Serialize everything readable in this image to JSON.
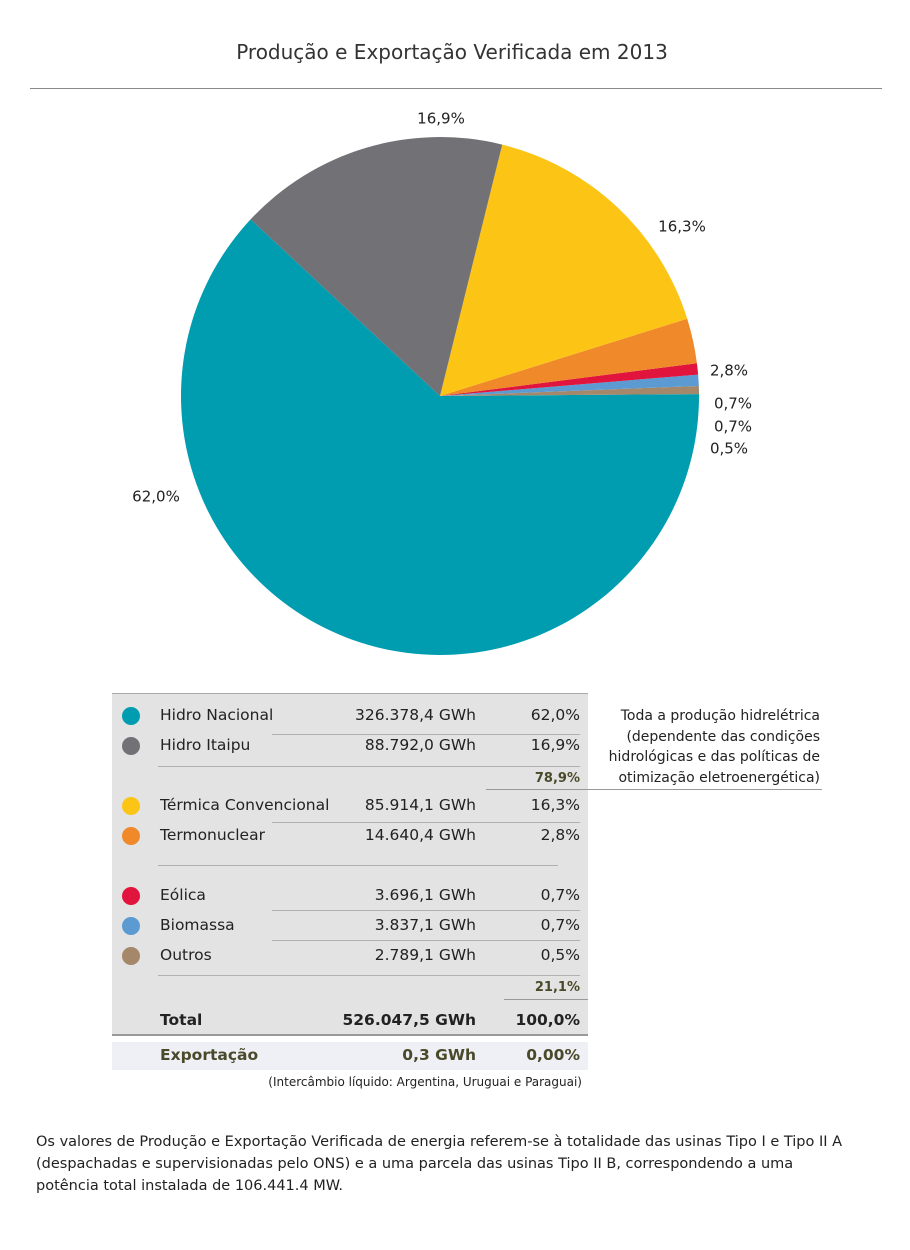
{
  "page": {
    "title": "Produção e Exportação Verificada em 2013"
  },
  "chart_data": {
    "type": "pie",
    "title": "Produção e Exportação Verificada em 2013",
    "slices": [
      {
        "name": "Hidro Nacional",
        "value": 62.0,
        "label": "62,0%",
        "color": "#009db1"
      },
      {
        "name": "Outros",
        "value": 0.5,
        "label": "0,5%",
        "color": "#a5876a"
      },
      {
        "name": "Biomassa",
        "value": 0.7,
        "label": "0,7%",
        "color": "#5b9bd1"
      },
      {
        "name": "Eólica",
        "value": 0.7,
        "label": "0,7%",
        "color": "#e0143c"
      },
      {
        "name": "Termonuclear",
        "value": 2.8,
        "label": "2,8%",
        "color": "#f0892a"
      },
      {
        "name": "Térmica Convencional",
        "value": 16.3,
        "label": "16,3%",
        "color": "#fcc516"
      },
      {
        "name": "Hidro Itaipu",
        "value": 16.9,
        "label": "16,9%",
        "color": "#727176"
      }
    ]
  },
  "table": {
    "rows": [
      {
        "name": "Hidro Nacional",
        "gwh": "326.378,4 GWh",
        "pct": "62,0%",
        "color": "#009db1"
      },
      {
        "name": "Hidro Itaipu",
        "gwh": "88.792,0 GWh",
        "pct": "16,9%",
        "color": "#727176"
      },
      {
        "name": "Térmica Convencional",
        "gwh": "85.914,1 GWh",
        "pct": "16,3%",
        "color": "#fcc516"
      },
      {
        "name": "Termonuclear",
        "gwh": "14.640,4 GWh",
        "pct": "2,8%",
        "color": "#f0892a"
      },
      {
        "name": "Eólica",
        "gwh": "3.696,1 GWh",
        "pct": "0,7%",
        "color": "#e0143c"
      },
      {
        "name": "Biomassa",
        "gwh": "3.837,1 GWh",
        "pct": "0,7%",
        "color": "#5b9bd1"
      },
      {
        "name": "Outros",
        "gwh": "2.789,1 GWh",
        "pct": "0,5%",
        "color": "#a5876a"
      }
    ],
    "subtotal_hydro": "78,9%",
    "subtotal_other": "21,1%",
    "total": {
      "label": "Total",
      "gwh": "526.047,5 GWh",
      "pct": "100,0%"
    },
    "export": {
      "label": "Exportação",
      "gwh": "0,3 GWh",
      "pct": "0,00%"
    },
    "export_note": "(Intercâmbio líquido: Argentina, Uruguai e Paraguai)"
  },
  "side_note": {
    "lines": [
      "Toda a produção hidrelétrica",
      "(dependente das condições",
      "hidrológicas e das políticas de",
      "otimização eletroenergética)"
    ]
  },
  "footnote": {
    "lines": [
      "Os valores de Produção e Exportação Verificada de energia referem-se à totalidade das usinas Tipo I e Tipo II A",
      "(despachadas e supervisionadas pelo ONS) e a uma parcela das usinas Tipo II B, correspondendo a uma",
      "potência total instalada  de 106.441.4 MW."
    ]
  }
}
